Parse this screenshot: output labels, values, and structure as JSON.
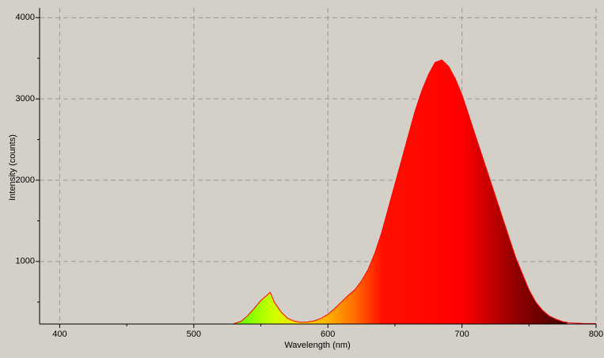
{
  "chart_data": {
    "type": "area",
    "x_label": "Wavelength (nm)",
    "y_label": "Intensity (counts)",
    "xlim": [
      385,
      800
    ],
    "ylim": [
      230,
      4120
    ],
    "xticks": [
      400,
      500,
      600,
      700,
      800
    ],
    "yticks": [
      1000,
      2000,
      3000,
      4000
    ],
    "xminorticks": [
      450,
      550,
      650,
      750
    ],
    "yminorticks": [
      500,
      1500,
      2500,
      3500
    ],
    "grid": true,
    "series": [
      {
        "color": "#ff0000",
        "x": [
          530,
          535,
          540,
          545,
          550,
          555,
          557,
          560,
          565,
          570,
          575,
          580,
          585,
          590,
          595,
          600,
          605,
          610,
          615,
          620,
          625,
          630,
          635,
          640,
          645,
          650,
          655,
          660,
          665,
          670,
          675,
          680,
          685,
          690,
          695,
          700,
          705,
          710,
          715,
          720,
          725,
          730,
          735,
          740,
          745,
          750,
          755,
          760,
          765,
          770,
          775,
          780,
          790,
          800
        ],
        "values": [
          235,
          260,
          330,
          420,
          520,
          590,
          620,
          500,
          380,
          300,
          265,
          250,
          255,
          270,
          300,
          350,
          420,
          500,
          580,
          650,
          760,
          900,
          1100,
          1350,
          1650,
          1950,
          2250,
          2550,
          2850,
          3100,
          3300,
          3450,
          3480,
          3400,
          3250,
          3050,
          2800,
          2550,
          2300,
          2050,
          1800,
          1550,
          1300,
          1050,
          850,
          650,
          500,
          400,
          330,
          290,
          260,
          245,
          238,
          235
        ]
      }
    ]
  }
}
